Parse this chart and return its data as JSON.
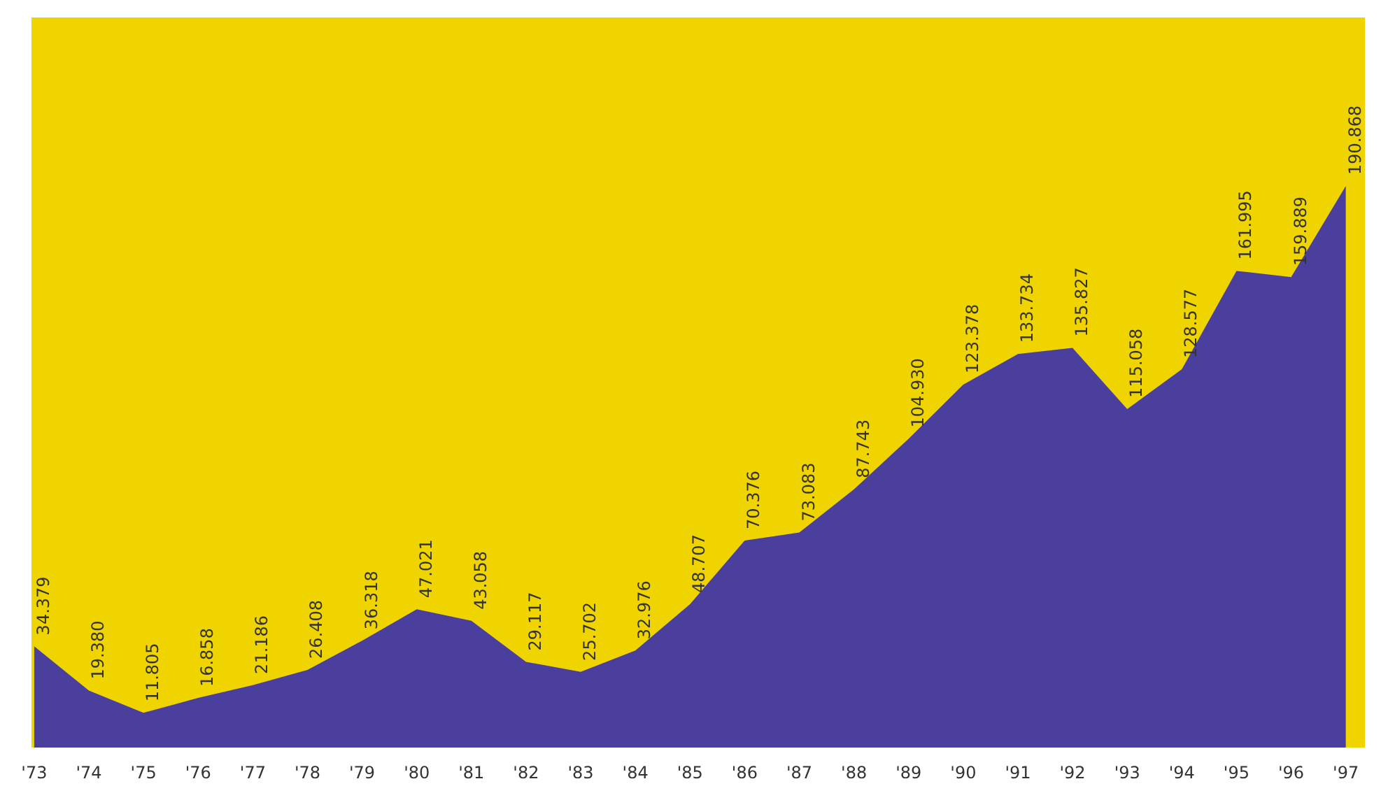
{
  "chart_data": {
    "type": "area",
    "categories": [
      "'73",
      "'74",
      "'75",
      "'76",
      "'77",
      "'78",
      "'79",
      "'80",
      "'81",
      "'82",
      "'83",
      "'84",
      "'85",
      "'86",
      "'87",
      "'88",
      "'89",
      "'90",
      "'91",
      "'92",
      "'93",
      "'94",
      "'95",
      "'96",
      "'97"
    ],
    "series": [
      {
        "color": "#4b3f9e",
        "values": [
          34.379,
          19.38,
          11.805,
          16.858,
          21.186,
          26.408,
          36.318,
          47.021,
          43.058,
          29.117,
          25.702,
          32.976,
          48.707,
          70.376,
          73.083,
          87.743,
          104.93,
          123.378,
          133.734,
          135.827,
          115.058,
          128.577,
          161.995,
          159.889,
          190.868
        ],
        "value_labels": [
          "34.379",
          "19.380",
          "11.805",
          "16.858",
          "21.186",
          "26.408",
          "36.318",
          "47.021",
          "43.058",
          "29.117",
          "25.702",
          "32.976",
          "48.707",
          "70.376",
          "73.083",
          "87.743",
          "104.930",
          "123.378",
          "133.734",
          "135.827",
          "115.058",
          "128.577",
          "161.995",
          "159.889",
          "190.868"
        ]
      }
    ],
    "grid": false
  }
}
